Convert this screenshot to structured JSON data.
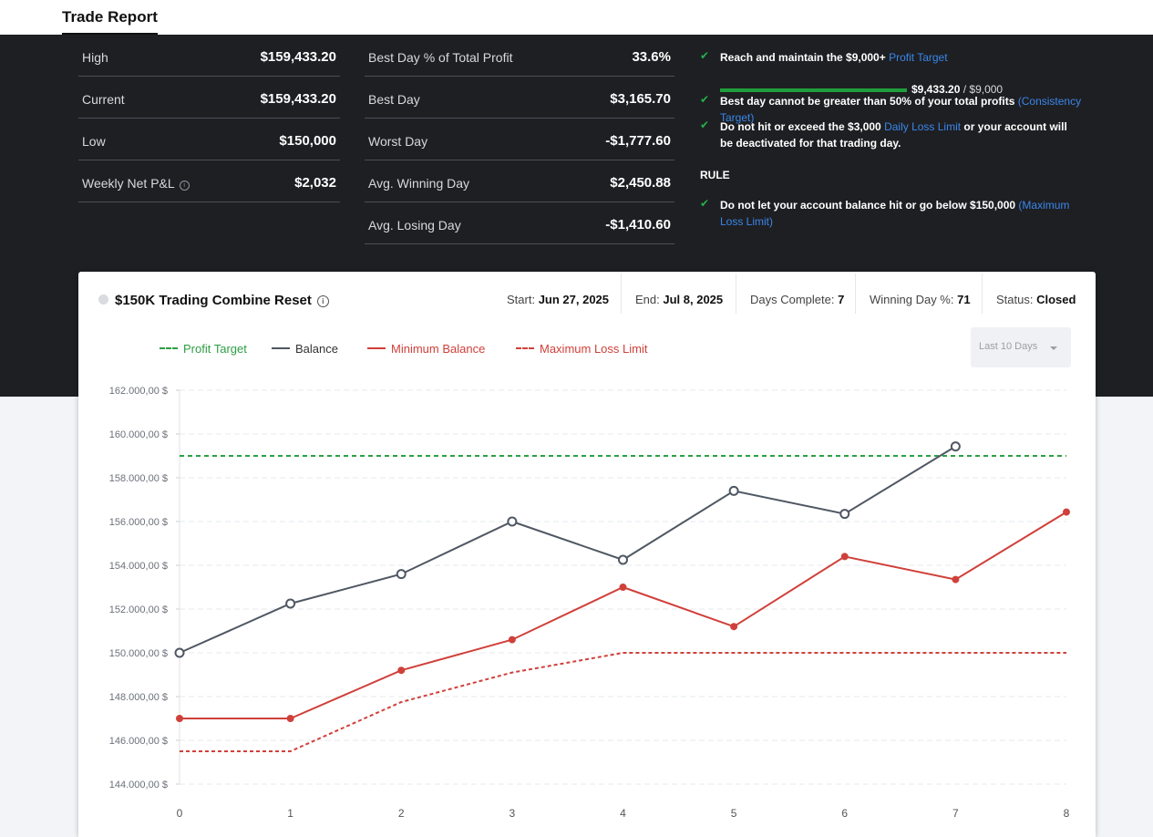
{
  "page": {
    "tab_title": "Trade Report"
  },
  "stats_left": [
    {
      "label": "High",
      "value": "$159,433.20"
    },
    {
      "label": "Current",
      "value": "$159,433.20"
    },
    {
      "label": "Low",
      "value": "$150,000"
    },
    {
      "label": "Weekly Net P&L",
      "value": "$2,032",
      "info_icon": "info-icon"
    }
  ],
  "stats_mid": [
    {
      "label": "Best Day % of Total Profit",
      "value": "33.6%"
    },
    {
      "label": "Best Day",
      "value": "$3,165.70"
    },
    {
      "label": "Worst Day",
      "value": "-$1,777.60"
    },
    {
      "label": "Avg. Winning Day",
      "value": "$2,450.88"
    },
    {
      "label": "Avg. Losing Day",
      "value": "-$1,410.60"
    }
  ],
  "rules": {
    "r1_text": "Reach and maintain the $9,000+ ",
    "r1_link": "Profit Target",
    "r1_current": "$9,433.20",
    "r1_target": " / $9,000",
    "r1_progress": 1.0,
    "r2_text": "Best day cannot be greater than 50% of your total profits ",
    "r2_link": "(Consistency Target)",
    "r3_text": "Do not hit or exceed the $3,000 ",
    "r3_link": "Daily Loss Limit",
    "r3_text2": " or your account will be deactivated for that trading day.",
    "heading": "RULE",
    "r4_text": "Do not let your account balance hit or go below $150,000 ",
    "r4_link": "(Maximum Loss Limit)",
    "check_icon": "check-icon",
    "check_color": "#22b14c",
    "link_color": "#3a86e8"
  },
  "card": {
    "title": "$150K Trading Combine Reset",
    "start_label": "Start: ",
    "start_value": "Jun 27, 2025",
    "end_label": "End: ",
    "end_value": "Jul 8, 2025",
    "days_label": "Days Complete: ",
    "days_value": "7",
    "winpct_label": "Winning Day %: ",
    "winpct_value": "71",
    "status_label": "Status: ",
    "status_value": "Closed",
    "range_select": "Last 10 Days"
  },
  "legend": {
    "profit_target": "Profit Target",
    "balance": "Balance",
    "min_balance": "Minimum Balance",
    "max_loss": "Maximum Loss Limit"
  },
  "chart_data": {
    "type": "line",
    "x": [
      0,
      1,
      2,
      3,
      4,
      5,
      6,
      7,
      8
    ],
    "ylim": [
      144000,
      162000
    ],
    "yticks": [
      144000,
      146000,
      148000,
      150000,
      152000,
      154000,
      156000,
      158000,
      160000,
      162000
    ],
    "ytick_labels": [
      "144.000,00 $",
      "146.000,00 $",
      "148.000,00 $",
      "150.000,00 $",
      "152.000,00 $",
      "154.000,00 $",
      "156.000,00 $",
      "158.000,00 $",
      "160.000,00 $",
      "162.000,00 $"
    ],
    "grid": true,
    "series": [
      {
        "name": "Profit Target",
        "x": [
          0,
          8
        ],
        "values": [
          159000,
          159000
        ],
        "color": "#2e9e44",
        "style": "dashed"
      },
      {
        "name": "Balance",
        "x": [
          0,
          1,
          2,
          3,
          4,
          5,
          6,
          7
        ],
        "values": [
          150000,
          152250,
          153600,
          156000,
          154250,
          157400,
          156350,
          159433.2
        ],
        "color": "#4f5763",
        "style": "solid",
        "markers": "hollow"
      },
      {
        "name": "Minimum Balance",
        "x": [
          0,
          1,
          2,
          3,
          4,
          5,
          6,
          7,
          8
        ],
        "values": [
          147000,
          147000,
          149200,
          150600,
          153000,
          151200,
          154400,
          153350,
          156433.2
        ],
        "color": "#d0403a",
        "style": "solid",
        "markers": "filled"
      },
      {
        "name": "Maximum Loss Limit",
        "x": [
          0,
          1,
          2,
          3,
          4,
          5,
          6,
          7,
          8
        ],
        "values": [
          145500,
          145500,
          147750,
          149100,
          150000,
          150000,
          150000,
          150000,
          150000
        ],
        "color": "#d0403a",
        "style": "dotted"
      }
    ]
  }
}
